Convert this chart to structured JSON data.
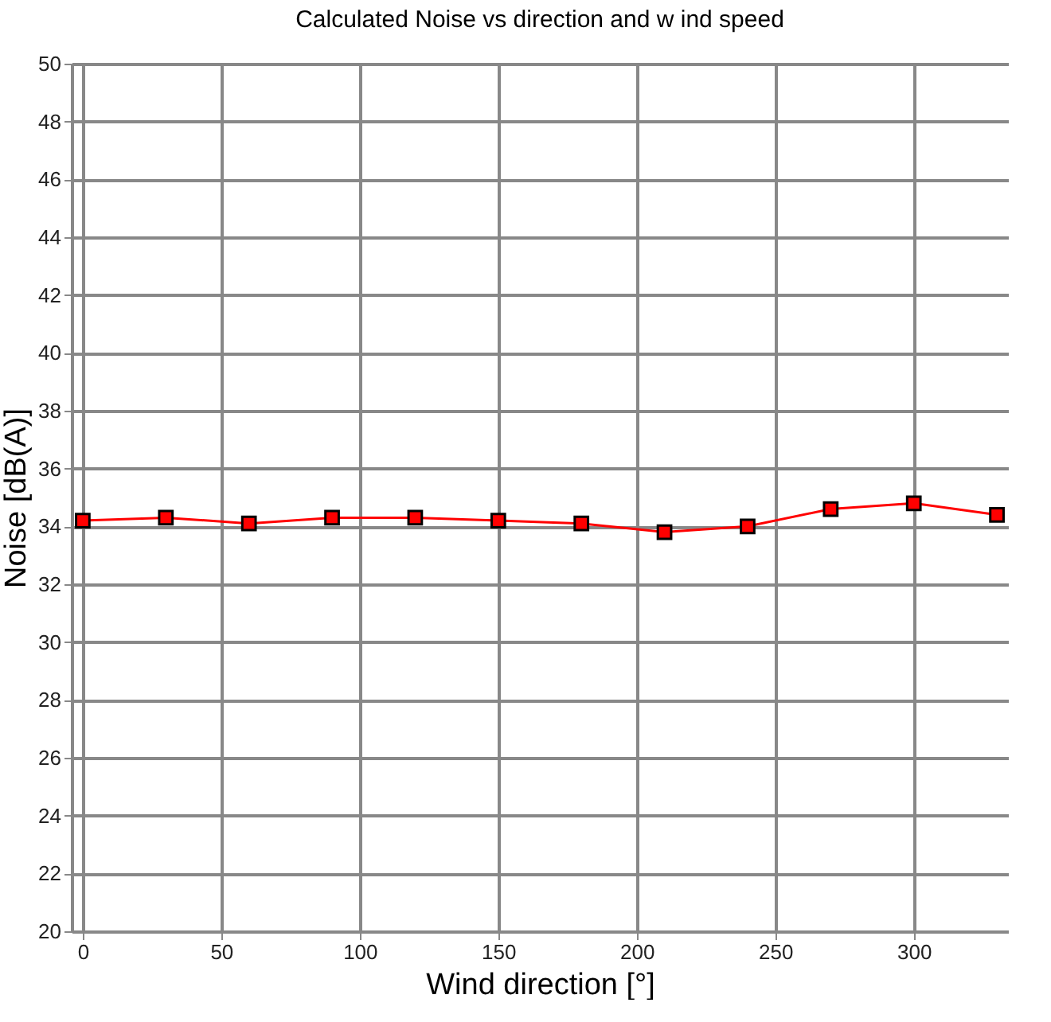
{
  "chart_data": {
    "type": "line",
    "title": "Calculated Noise vs direction and w ind speed",
    "xlabel": "Wind direction [°]",
    "ylabel": "Noise [dB(A)]",
    "x": [
      0,
      30,
      60,
      90,
      120,
      150,
      180,
      210,
      240,
      270,
      300,
      330
    ],
    "series": [
      {
        "color": "#ff0000",
        "values": [
          34.2,
          34.3,
          34.1,
          34.3,
          34.3,
          34.2,
          34.1,
          33.8,
          34.0,
          34.6,
          34.8,
          34.4
        ]
      }
    ],
    "xlim": [
      -4,
      334
    ],
    "xticks": [
      0,
      50,
      100,
      150,
      200,
      250,
      300
    ],
    "ylim": [
      20,
      50
    ],
    "yticks": [
      20,
      22,
      24,
      26,
      28,
      30,
      32,
      34,
      36,
      38,
      40,
      42,
      44,
      46,
      48,
      50
    ],
    "grid": true,
    "marker": "square",
    "line_style": "solid",
    "legend": false
  }
}
